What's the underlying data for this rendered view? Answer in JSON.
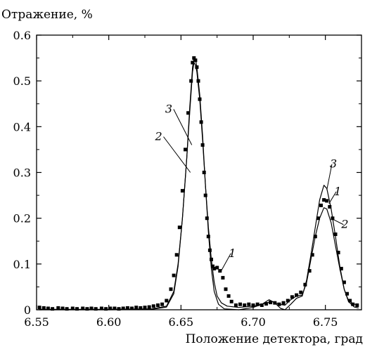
{
  "chart_data": {
    "type": "line",
    "title": "",
    "ylabel": "Отражение, %",
    "xlabel": "Положение детектора, град",
    "xlim": [
      6.55,
      6.775
    ],
    "ylim": [
      0,
      0.6
    ],
    "x_ticks": [
      "6.55",
      "6.60",
      "6.65",
      "6.70",
      "6.75"
    ],
    "x_tick_values": [
      6.55,
      6.6,
      6.65,
      6.7,
      6.75
    ],
    "y_ticks": [
      "0",
      "0.1",
      "0.2",
      "0.3",
      "0.4",
      "0.5",
      "0.6"
    ],
    "y_tick_values": [
      0,
      0.1,
      0.2,
      0.3,
      0.4,
      0.5,
      0.6
    ],
    "grid": false,
    "series": [
      {
        "name": "1",
        "style": "markers",
        "points": [
          [
            6.552,
            0.005
          ],
          [
            6.555,
            0.004
          ],
          [
            6.558,
            0.003
          ],
          [
            6.561,
            0.002
          ],
          [
            6.565,
            0.004
          ],
          [
            6.568,
            0.003
          ],
          [
            6.571,
            0.002
          ],
          [
            6.575,
            0.003
          ],
          [
            6.578,
            0.002
          ],
          [
            6.582,
            0.003
          ],
          [
            6.585,
            0.002
          ],
          [
            6.588,
            0.003
          ],
          [
            6.591,
            0.002
          ],
          [
            6.595,
            0.003
          ],
          [
            6.598,
            0.002
          ],
          [
            6.601,
            0.003
          ],
          [
            6.604,
            0.003
          ],
          [
            6.607,
            0.002
          ],
          [
            6.61,
            0.003
          ],
          [
            6.613,
            0.004
          ],
          [
            6.616,
            0.003
          ],
          [
            6.619,
            0.005
          ],
          [
            6.622,
            0.004
          ],
          [
            6.625,
            0.005
          ],
          [
            6.628,
            0.006
          ],
          [
            6.631,
            0.008
          ],
          [
            6.634,
            0.01
          ],
          [
            6.637,
            0.012
          ],
          [
            6.64,
            0.02
          ],
          [
            6.643,
            0.045
          ],
          [
            6.645,
            0.075
          ],
          [
            6.647,
            0.12
          ],
          [
            6.649,
            0.18
          ],
          [
            6.651,
            0.26
          ],
          [
            6.653,
            0.35
          ],
          [
            6.655,
            0.43
          ],
          [
            6.657,
            0.5
          ],
          [
            6.658,
            0.54
          ],
          [
            6.659,
            0.55
          ],
          [
            6.66,
            0.545
          ],
          [
            6.661,
            0.53
          ],
          [
            6.662,
            0.5
          ],
          [
            6.663,
            0.46
          ],
          [
            6.664,
            0.41
          ],
          [
            6.665,
            0.36
          ],
          [
            6.666,
            0.3
          ],
          [
            6.667,
            0.25
          ],
          [
            6.668,
            0.2
          ],
          [
            6.669,
            0.16
          ],
          [
            6.67,
            0.13
          ],
          [
            6.671,
            0.11
          ],
          [
            6.672,
            0.095
          ],
          [
            6.673,
            0.09
          ],
          [
            6.675,
            0.092
          ],
          [
            6.677,
            0.085
          ],
          [
            6.679,
            0.07
          ],
          [
            6.681,
            0.045
          ],
          [
            6.683,
            0.03
          ],
          [
            6.685,
            0.018
          ],
          [
            6.688,
            0.01
          ],
          [
            6.691,
            0.012
          ],
          [
            6.694,
            0.01
          ],
          [
            6.697,
            0.012
          ],
          [
            6.7,
            0.01
          ],
          [
            6.703,
            0.012
          ],
          [
            6.706,
            0.01
          ],
          [
            6.709,
            0.013
          ],
          [
            6.712,
            0.016
          ],
          [
            6.715,
            0.015
          ],
          [
            6.718,
            0.012
          ],
          [
            6.721,
            0.015
          ],
          [
            6.724,
            0.02
          ],
          [
            6.727,
            0.028
          ],
          [
            6.73,
            0.032
          ],
          [
            6.733,
            0.038
          ],
          [
            6.736,
            0.055
          ],
          [
            6.739,
            0.085
          ],
          [
            6.741,
            0.12
          ],
          [
            6.743,
            0.16
          ],
          [
            6.745,
            0.2
          ],
          [
            6.747,
            0.228
          ],
          [
            6.749,
            0.24
          ],
          [
            6.751,
            0.238
          ],
          [
            6.753,
            0.225
          ],
          [
            6.755,
            0.2
          ],
          [
            6.757,
            0.165
          ],
          [
            6.759,
            0.125
          ],
          [
            6.761,
            0.09
          ],
          [
            6.763,
            0.06
          ],
          [
            6.765,
            0.035
          ],
          [
            6.767,
            0.02
          ],
          [
            6.769,
            0.012
          ],
          [
            6.772,
            0.01
          ]
        ]
      },
      {
        "name": "2",
        "style": "line",
        "points": [
          [
            6.552,
            0.001
          ],
          [
            6.6,
            0.001
          ],
          [
            6.63,
            0.002
          ],
          [
            6.64,
            0.008
          ],
          [
            6.645,
            0.04
          ],
          [
            6.648,
            0.1
          ],
          [
            6.651,
            0.2
          ],
          [
            6.654,
            0.33
          ],
          [
            6.656,
            0.43
          ],
          [
            6.658,
            0.52
          ],
          [
            6.659,
            0.54
          ],
          [
            6.66,
            0.535
          ],
          [
            6.661,
            0.52
          ],
          [
            6.663,
            0.46
          ],
          [
            6.665,
            0.37
          ],
          [
            6.667,
            0.27
          ],
          [
            6.669,
            0.18
          ],
          [
            6.671,
            0.11
          ],
          [
            6.673,
            0.06
          ],
          [
            6.675,
            0.03
          ],
          [
            6.678,
            0.015
          ],
          [
            6.682,
            0.008
          ],
          [
            6.69,
            0.005
          ],
          [
            6.7,
            0.008
          ],
          [
            6.708,
            0.014
          ],
          [
            6.713,
            0.018
          ],
          [
            6.718,
            0.012
          ],
          [
            6.722,
            0.01
          ],
          [
            6.726,
            0.022
          ],
          [
            6.73,
            0.03
          ],
          [
            6.734,
            0.032
          ],
          [
            6.737,
            0.06
          ],
          [
            6.74,
            0.11
          ],
          [
            6.743,
            0.16
          ],
          [
            6.746,
            0.2
          ],
          [
            6.749,
            0.223
          ],
          [
            6.751,
            0.22
          ],
          [
            6.754,
            0.19
          ],
          [
            6.757,
            0.14
          ],
          [
            6.76,
            0.09
          ],
          [
            6.763,
            0.045
          ],
          [
            6.766,
            0.02
          ],
          [
            6.77,
            0.012
          ],
          [
            6.773,
            0.012
          ]
        ]
      },
      {
        "name": "3",
        "style": "line",
        "points": [
          [
            6.552,
            0.0
          ],
          [
            6.6,
            0.0
          ],
          [
            6.63,
            0.001
          ],
          [
            6.64,
            0.006
          ],
          [
            6.645,
            0.035
          ],
          [
            6.648,
            0.095
          ],
          [
            6.651,
            0.2
          ],
          [
            6.654,
            0.33
          ],
          [
            6.656,
            0.44
          ],
          [
            6.658,
            0.53
          ],
          [
            6.659,
            0.55
          ],
          [
            6.66,
            0.548
          ],
          [
            6.661,
            0.53
          ],
          [
            6.663,
            0.47
          ],
          [
            6.665,
            0.38
          ],
          [
            6.667,
            0.27
          ],
          [
            6.669,
            0.17
          ],
          [
            6.671,
            0.09
          ],
          [
            6.673,
            0.04
          ],
          [
            6.676,
            0.012
          ],
          [
            6.68,
            0.002
          ],
          [
            6.69,
            0.0
          ],
          [
            6.7,
            0.005
          ],
          [
            6.706,
            0.012
          ],
          [
            6.711,
            0.022
          ],
          [
            6.715,
            0.015
          ],
          [
            6.719,
            0.003
          ],
          [
            6.722,
            0.0
          ],
          [
            6.726,
            0.012
          ],
          [
            6.73,
            0.025
          ],
          [
            6.734,
            0.03
          ],
          [
            6.737,
            0.065
          ],
          [
            6.74,
            0.12
          ],
          [
            6.743,
            0.18
          ],
          [
            6.746,
            0.24
          ],
          [
            6.749,
            0.272
          ],
          [
            6.751,
            0.265
          ],
          [
            6.754,
            0.22
          ],
          [
            6.757,
            0.16
          ],
          [
            6.76,
            0.095
          ],
          [
            6.763,
            0.045
          ],
          [
            6.766,
            0.018
          ],
          [
            6.77,
            0.006
          ],
          [
            6.773,
            0.004
          ]
        ]
      }
    ],
    "annotations": [
      {
        "text": "3",
        "x": 6.6415,
        "y": 0.435,
        "target": [
          6.6575,
          0.36
        ],
        "series": "3"
      },
      {
        "text": "2",
        "x": 6.6345,
        "y": 0.375,
        "target": [
          6.6565,
          0.3
        ],
        "series": "2"
      },
      {
        "text": "1",
        "x": 6.6855,
        "y": 0.12,
        "target": [
          6.6775,
          0.083
        ],
        "series": "1"
      },
      {
        "text": "3",
        "x": 6.7555,
        "y": 0.315,
        "target": [
          6.751,
          0.262
        ],
        "series": "3"
      },
      {
        "text": "1",
        "x": 6.7585,
        "y": 0.255,
        "target": [
          6.7525,
          0.232
        ],
        "series": "1"
      },
      {
        "text": "2",
        "x": 6.7635,
        "y": 0.183,
        "target": [
          6.755,
          0.198
        ],
        "series": "2"
      }
    ]
  }
}
